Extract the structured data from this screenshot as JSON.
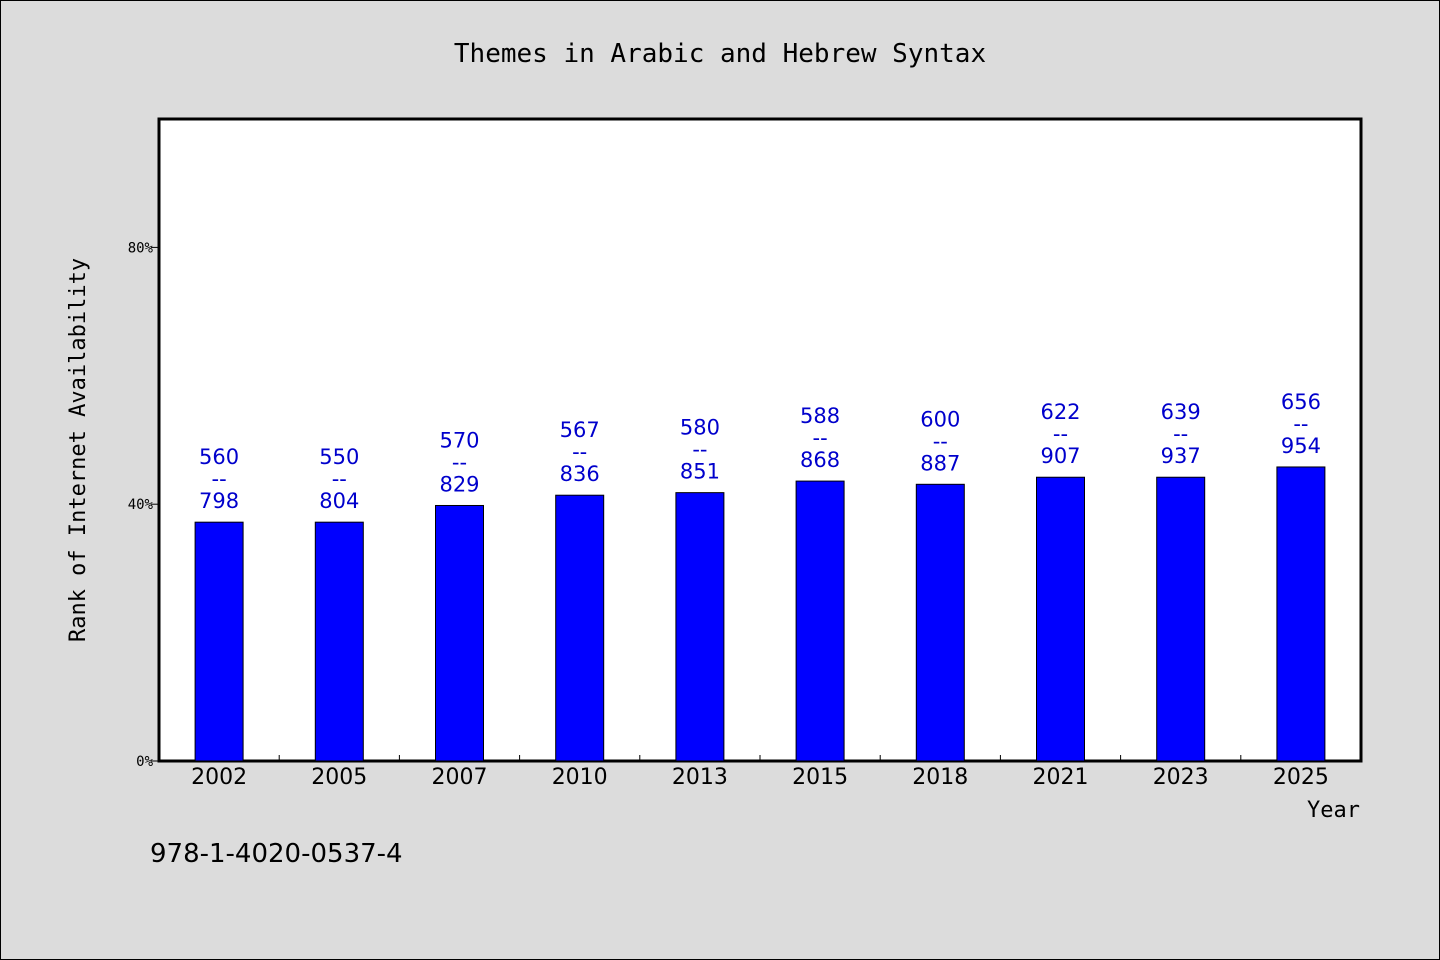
{
  "chart_data": {
    "type": "bar",
    "title": "Themes in Arabic and Hebrew Syntax",
    "xlabel": "Year",
    "ylabel": "Rank of Internet Availability",
    "categories": [
      "2002",
      "2005",
      "2007",
      "2010",
      "2013",
      "2015",
      "2018",
      "2021",
      "2023",
      "2025"
    ],
    "values": [
      37.2,
      37.2,
      39.8,
      41.4,
      41.8,
      43.6,
      43.1,
      44.2,
      44.2,
      45.8
    ],
    "data_labels": [
      {
        "top": "560",
        "sep": "--",
        "bottom": "798"
      },
      {
        "top": "550",
        "sep": "--",
        "bottom": "804"
      },
      {
        "top": "570",
        "sep": "--",
        "bottom": "829"
      },
      {
        "top": "567",
        "sep": "--",
        "bottom": "836"
      },
      {
        "top": "580",
        "sep": "--",
        "bottom": "851"
      },
      {
        "top": "588",
        "sep": "--",
        "bottom": "868"
      },
      {
        "top": "600",
        "sep": "--",
        "bottom": "887"
      },
      {
        "top": "622",
        "sep": "--",
        "bottom": "907"
      },
      {
        "top": "639",
        "sep": "--",
        "bottom": "937"
      },
      {
        "top": "656",
        "sep": "--",
        "bottom": "954"
      }
    ],
    "ylim": [
      0,
      100
    ],
    "yticks": [
      {
        "value": 0,
        "label": "0%"
      },
      {
        "value": 40,
        "label": "40%"
      },
      {
        "value": 80,
        "label": "80%"
      }
    ],
    "grid": false,
    "legend": "none",
    "colors": {
      "bar": "#0000ff",
      "bar_edge": "#000000",
      "label": "#0000cc",
      "page_bg": "#dcdcdc",
      "plot_bg": "#ffffff"
    }
  },
  "footnote": "978-1-4020-0537-4"
}
